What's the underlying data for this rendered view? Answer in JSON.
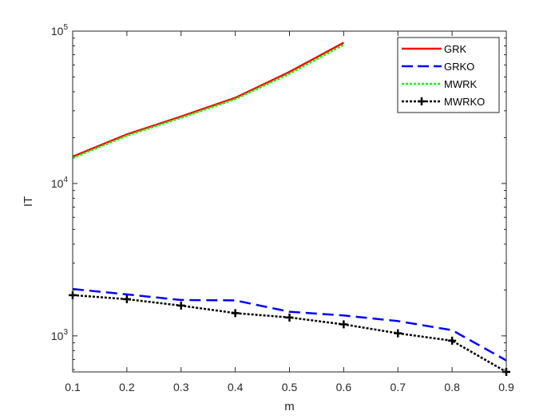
{
  "chart_data": {
    "type": "line",
    "xlabel": "m",
    "ylabel": "IT",
    "xlim": [
      0.1,
      0.9
    ],
    "ylim": [
      580,
      100000
    ],
    "yscale": "log",
    "x_ticks": [
      0.1,
      0.2,
      0.3,
      0.4,
      0.5,
      0.6,
      0.7,
      0.8,
      0.9
    ],
    "x_tick_labels": [
      "0.1",
      "0.2",
      "0.3",
      "0.4",
      "0.5",
      "0.6",
      "0.7",
      "0.8",
      "0.9"
    ],
    "y_ticks": [
      {
        "base": "10",
        "exp": "3",
        "value": 1000
      },
      {
        "base": "10",
        "exp": "4",
        "value": 10000
      },
      {
        "base": "10",
        "exp": "5",
        "value": 100000
      }
    ],
    "legend_position": "top-right",
    "grid": false,
    "series": [
      {
        "name": "GRK",
        "color": "#ff0000",
        "style": "solid",
        "x": [
          0.1,
          0.2,
          0.3,
          0.4,
          0.5,
          0.6
        ],
        "y": [
          15000,
          21000,
          27500,
          36500,
          54000,
          84000
        ]
      },
      {
        "name": "GRKO",
        "color": "#0000ff",
        "style": "dashed",
        "x": [
          0.1,
          0.2,
          0.3,
          0.4,
          0.5,
          0.6,
          0.7,
          0.8,
          0.9
        ],
        "y": [
          2030,
          1870,
          1720,
          1710,
          1440,
          1360,
          1250,
          1090,
          690
        ]
      },
      {
        "name": "MWRK",
        "color": "#00ff00",
        "style": "dotted",
        "x": [
          0.1,
          0.2,
          0.3,
          0.4,
          0.5,
          0.6
        ],
        "y": [
          14700,
          20600,
          27000,
          35800,
          52500,
          81500
        ]
      },
      {
        "name": "MWRKO",
        "color": "#000000",
        "style": "dotted",
        "marker": "plus",
        "x": [
          0.1,
          0.2,
          0.3,
          0.4,
          0.5,
          0.6,
          0.7,
          0.8,
          0.9
        ],
        "y": [
          1850,
          1740,
          1580,
          1410,
          1320,
          1190,
          1040,
          930,
          580
        ]
      }
    ]
  }
}
